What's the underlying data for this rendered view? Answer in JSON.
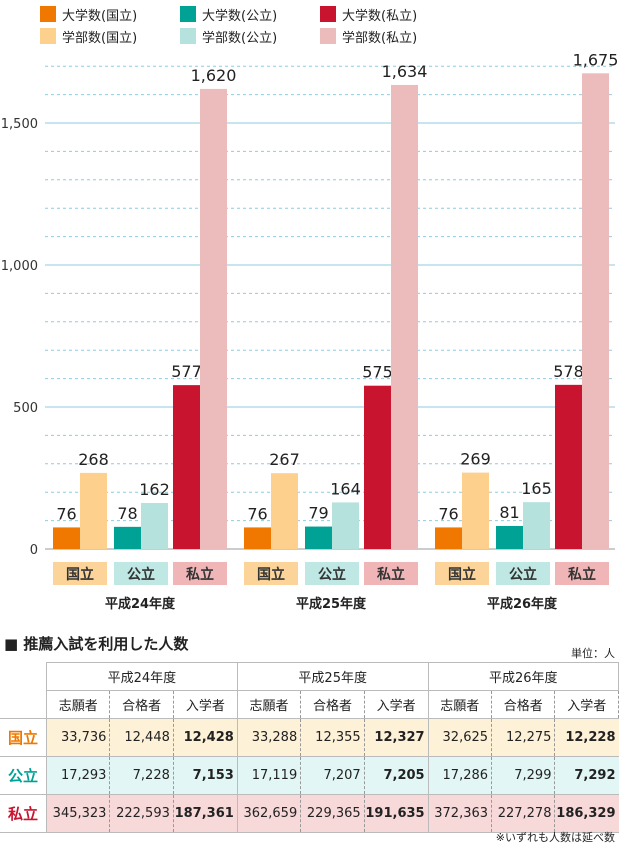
{
  "chart_data": {
    "type": "bar",
    "categories": [
      "平成24年度",
      "平成25年度",
      "平成26年度"
    ],
    "group_labels": [
      "国立",
      "公立",
      "私立"
    ],
    "yticks": [
      "0",
      "500",
      "1,000",
      "1,500"
    ],
    "ylim": [
      0,
      1700
    ],
    "grid": "solid every 500, dashed every 100",
    "legend_position": "top",
    "series": [
      {
        "name": "大学数(国立)",
        "values": [
          76,
          76,
          76
        ],
        "labels": [
          "76",
          "76",
          "76"
        ],
        "color": "#f07800"
      },
      {
        "name": "学部数(国立)",
        "values": [
          268,
          267,
          269
        ],
        "labels": [
          "268",
          "267",
          "269"
        ],
        "color": "#fed08e"
      },
      {
        "name": "大学数(公立)",
        "values": [
          78,
          79,
          81
        ],
        "labels": [
          "78",
          "79",
          "81"
        ],
        "color": "#00a295"
      },
      {
        "name": "学部数(公立)",
        "values": [
          162,
          164,
          165
        ],
        "labels": [
          "162",
          "164",
          "165"
        ],
        "color": "#b5e2dd"
      },
      {
        "name": "大学数(私立)",
        "values": [
          577,
          575,
          578
        ],
        "labels": [
          "577",
          "575",
          "578"
        ],
        "color": "#c8142f"
      },
      {
        "name": "学部数(私立)",
        "values": [
          1620,
          1634,
          1675
        ],
        "labels": [
          "1,620",
          "1,634",
          "1,675"
        ],
        "color": "#ecbcbc"
      }
    ],
    "label_colors": {
      "国立": "#fcd49a",
      "公立": "#bfe7e3",
      "私立": "#f0b6b7"
    }
  },
  "legend": [
    "大学数(国立)",
    "大学数(公立)",
    "大学数(私立)",
    "学部数(国立)",
    "学部数(公立)",
    "学部数(私立)"
  ],
  "table": {
    "title": "■ 推薦入試を利用した人数",
    "unit": "単位：人",
    "years": [
      "平成24年度",
      "平成25年度",
      "平成26年度"
    ],
    "subheaders": [
      "志願者",
      "合格者",
      "入学者"
    ],
    "rows": [
      {
        "label": "国立",
        "color": "#f07800",
        "values": [
          "33,736",
          "12,448",
          "12,428",
          "33,288",
          "12,355",
          "12,327",
          "32,625",
          "12,275",
          "12,228"
        ]
      },
      {
        "label": "公立",
        "color": "#00a295",
        "values": [
          "17,293",
          "7,228",
          "7,153",
          "17,119",
          "7,207",
          "7,205",
          "17,286",
          "7,299",
          "7,292"
        ]
      },
      {
        "label": "私立",
        "color": "#c8142f",
        "values": [
          "345,323",
          "222,593",
          "187,361",
          "362,659",
          "229,365",
          "191,635",
          "372,363",
          "227,278",
          "186,329"
        ]
      }
    ],
    "note": "※いずれも人数は延べ数"
  }
}
